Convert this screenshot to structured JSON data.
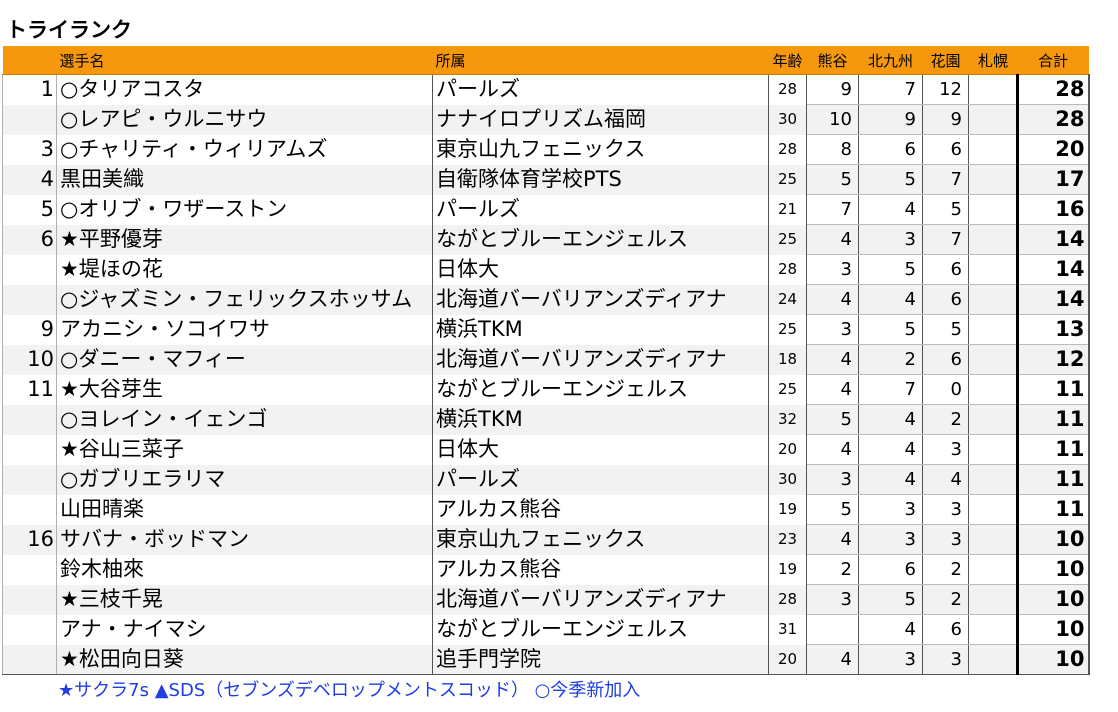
{
  "title": "トライランク",
  "headers": {
    "name": "選手名",
    "team": "所属",
    "age": "年齢",
    "rounds": [
      "熊谷",
      "北九州",
      "花園",
      "札幌"
    ],
    "total": "合計"
  },
  "rows": [
    {
      "rank": "1",
      "name": "○タリアコスタ",
      "team": "パールズ",
      "age": "28",
      "r1": "9",
      "r2": "7",
      "r3": "12",
      "r4": "",
      "total": "28"
    },
    {
      "rank": "",
      "name": "○レアピ・ウルニサウ",
      "team": "ナナイロプリズム福岡",
      "age": "30",
      "r1": "10",
      "r2": "9",
      "r3": "9",
      "r4": "",
      "total": "28"
    },
    {
      "rank": "3",
      "name": "○チャリティ・ウィリアムズ",
      "team": "東京山九フェニックス",
      "age": "28",
      "r1": "8",
      "r2": "6",
      "r3": "6",
      "r4": "",
      "total": "20"
    },
    {
      "rank": "4",
      "name": "黒田美織",
      "team": "自衛隊体育学校PTS",
      "age": "25",
      "r1": "5",
      "r2": "5",
      "r3": "7",
      "r4": "",
      "total": "17"
    },
    {
      "rank": "5",
      "name": "○オリブ・ワザーストン",
      "team": "パールズ",
      "age": "21",
      "r1": "7",
      "r2": "4",
      "r3": "5",
      "r4": "",
      "total": "16"
    },
    {
      "rank": "6",
      "name": "★平野優芽",
      "team": "ながとブルーエンジェルス",
      "age": "25",
      "r1": "4",
      "r2": "3",
      "r3": "7",
      "r4": "",
      "total": "14"
    },
    {
      "rank": "",
      "name": "★堤ほの花",
      "team": "日体大",
      "age": "28",
      "r1": "3",
      "r2": "5",
      "r3": "6",
      "r4": "",
      "total": "14"
    },
    {
      "rank": "",
      "name": "○ジャズミン・フェリックスホッサム",
      "team": "北海道バーバリアンズディアナ",
      "age": "24",
      "r1": "4",
      "r2": "4",
      "r3": "6",
      "r4": "",
      "total": "14"
    },
    {
      "rank": "9",
      "name": "アカニシ・ソコイワサ",
      "team": "横浜TKM",
      "age": "25",
      "r1": "3",
      "r2": "5",
      "r3": "5",
      "r4": "",
      "total": "13"
    },
    {
      "rank": "10",
      "name": "○ダニー・マフィー",
      "team": "北海道バーバリアンズディアナ",
      "age": "18",
      "r1": "4",
      "r2": "2",
      "r3": "6",
      "r4": "",
      "total": "12"
    },
    {
      "rank": "11",
      "name": "★大谷芽生",
      "team": "ながとブルーエンジェルス",
      "age": "25",
      "r1": "4",
      "r2": "7",
      "r3": "0",
      "r4": "",
      "total": "11"
    },
    {
      "rank": "",
      "name": "○ヨレイン・イェンゴ",
      "team": "横浜TKM",
      "age": "32",
      "r1": "5",
      "r2": "4",
      "r3": "2",
      "r4": "",
      "total": "11"
    },
    {
      "rank": "",
      "name": "★谷山三菜子",
      "team": "日体大",
      "age": "20",
      "r1": "4",
      "r2": "4",
      "r3": "3",
      "r4": "",
      "total": "11"
    },
    {
      "rank": "",
      "name": "○ガブリエラリマ",
      "team": "パールズ",
      "age": "30",
      "r1": "3",
      "r2": "4",
      "r3": "4",
      "r4": "",
      "total": "11"
    },
    {
      "rank": "",
      "name": "山田晴楽",
      "team": "アルカス熊谷",
      "age": "19",
      "r1": "5",
      "r2": "3",
      "r3": "3",
      "r4": "",
      "total": "11"
    },
    {
      "rank": "16",
      "name": "サバナ・ボッドマン",
      "team": "東京山九フェニックス",
      "age": "23",
      "r1": "4",
      "r2": "3",
      "r3": "3",
      "r4": "",
      "total": "10"
    },
    {
      "rank": "",
      "name": "鈴木柚來",
      "team": "アルカス熊谷",
      "age": "19",
      "r1": "2",
      "r2": "6",
      "r3": "2",
      "r4": "",
      "total": "10"
    },
    {
      "rank": "",
      "name": "★三枝千晃",
      "team": "北海道バーバリアンズディアナ",
      "age": "28",
      "r1": "3",
      "r2": "5",
      "r3": "2",
      "r4": "",
      "total": "10"
    },
    {
      "rank": "",
      "name": "アナ・ナイマシ",
      "team": "ながとブルーエンジェルス",
      "age": "31",
      "r1": "",
      "r2": "4",
      "r3": "6",
      "r4": "",
      "total": "10"
    },
    {
      "rank": "",
      "name": "★松田向日葵",
      "team": "追手門学院",
      "age": "20",
      "r1": "4",
      "r2": "3",
      "r3": "3",
      "r4": "",
      "total": "10"
    }
  ],
  "legend": "★サクラ7s ▲SDS（セブンズデベロップメントスコッド） ○今季新加入",
  "colors": {
    "header_bg": "#f5980d",
    "legend_text": "#1f3de0",
    "row_stripe": "#f2f2f2"
  }
}
